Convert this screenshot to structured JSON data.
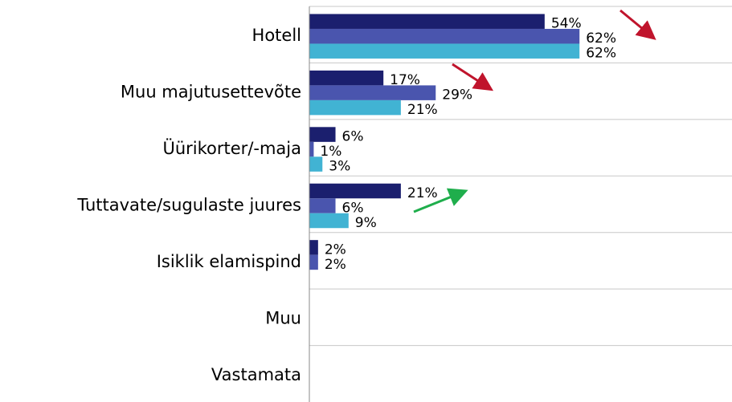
{
  "chart_data": {
    "type": "bar",
    "orientation": "horizontal",
    "categories": [
      "Hotell",
      "Muu majutusettevõte",
      "Üürikorter/-maja",
      "Tuttavate/sugulaste juures",
      "Isiklik elamispind",
      "Muu",
      "Vastamata"
    ],
    "series": [
      {
        "color": "#1b1f6e",
        "values": [
          54,
          17,
          6,
          21,
          2,
          null,
          null
        ],
        "value_labels": [
          "54%",
          "17%",
          "6%",
          "21%",
          "2%",
          null,
          null
        ]
      },
      {
        "color": "#4a55ae",
        "values": [
          62,
          29,
          1,
          6,
          2,
          null,
          null
        ],
        "value_labels": [
          "62%",
          "29%",
          "1%",
          "6%",
          "2%",
          null,
          null
        ]
      },
      {
        "color": "#41b3d3",
        "values": [
          62,
          21,
          3,
          9,
          null,
          null,
          null
        ],
        "value_labels": [
          "62%",
          "21%",
          "3%",
          "9%",
          null,
          null,
          null
        ]
      }
    ],
    "xlim": [
      0,
      97
    ],
    "grid": true
  }
}
